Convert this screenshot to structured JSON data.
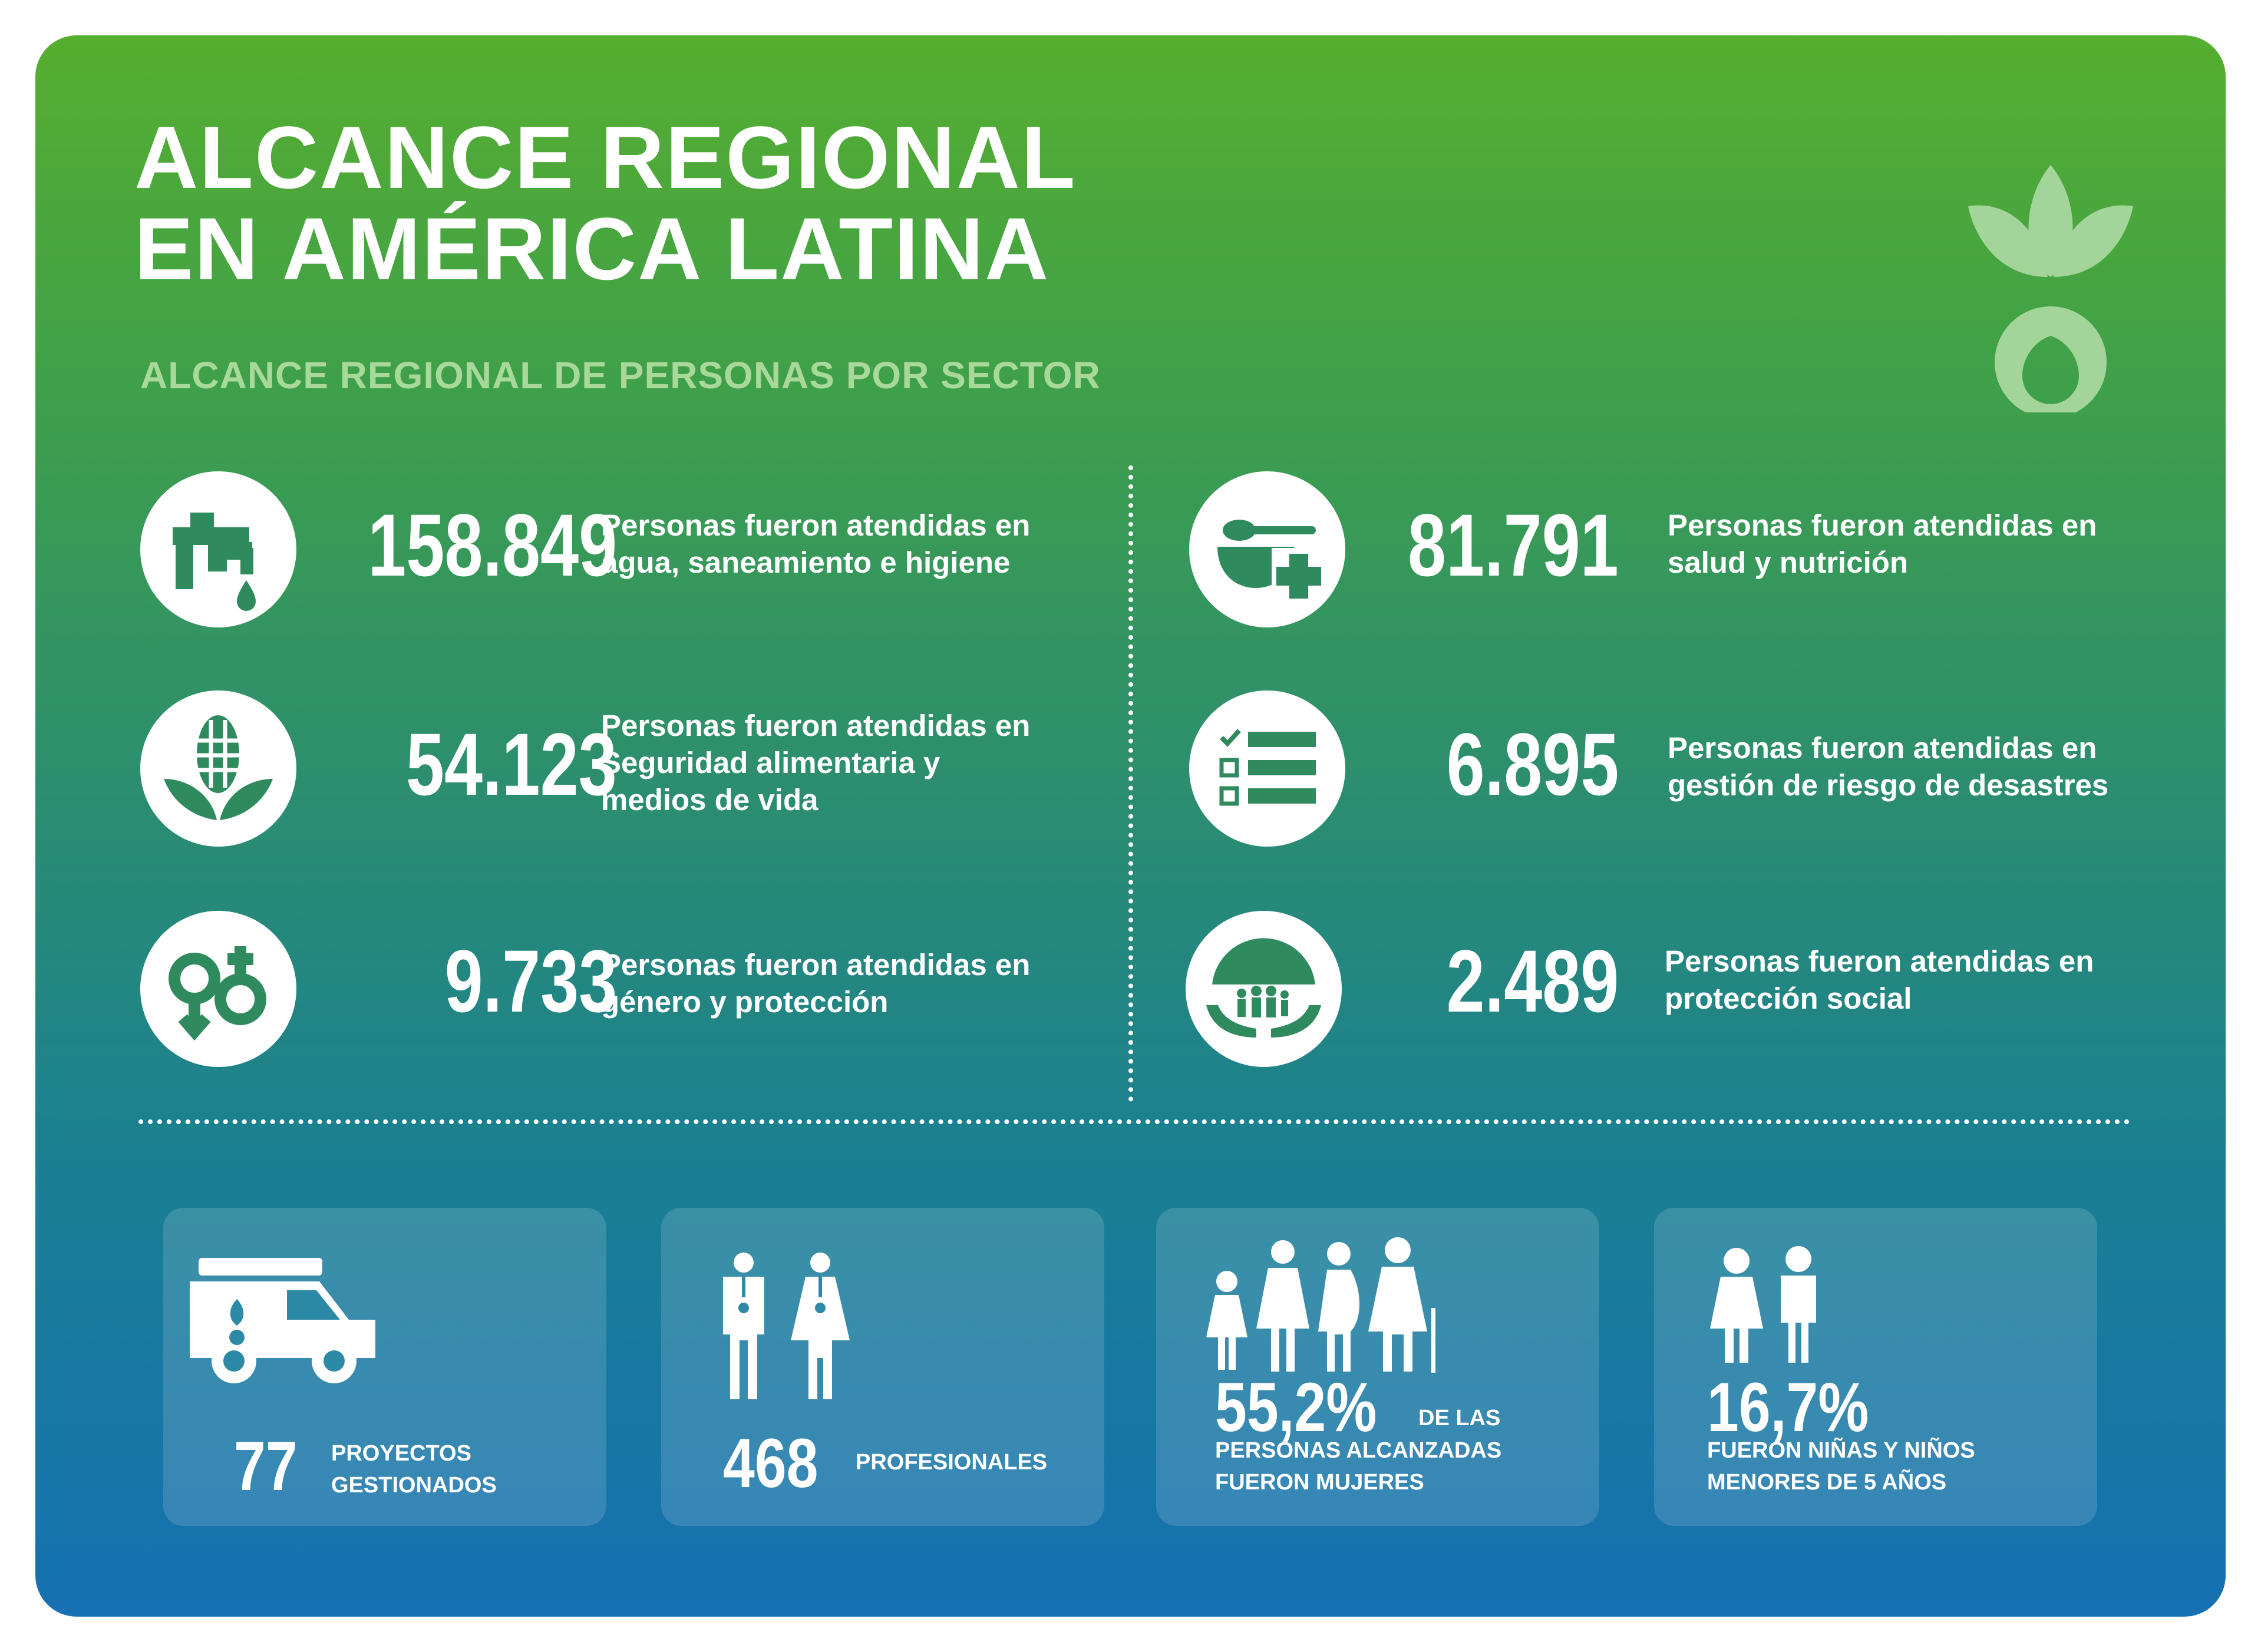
{
  "header": {
    "title_line1": "ALCANCE REGIONAL",
    "title_line2": "EN AMÉRICA LATINA",
    "subtitle": "ALCANCE REGIONAL DE PERSONAS POR SECTOR"
  },
  "colors": {
    "gradient_top": "#56ae2f",
    "gradient_bottom": "#1670b2",
    "icon_green": "#2f8a5e",
    "subtitle_green": "#a9d89b",
    "logo_green": "#a3d59a"
  },
  "sectors": [
    {
      "icon": "water-tap-icon",
      "value": "158.849",
      "line1": "Personas fueron atendidas en",
      "line2": "agua, saneamiento e higiene"
    },
    {
      "icon": "food-health-icon",
      "value": "81.791",
      "line1": "Personas fueron atendidas en",
      "line2": "salud y nutrición"
    },
    {
      "icon": "corn-plant-icon",
      "value": "54.123",
      "line1": "Personas fueron atendidas  en",
      "line2": "Seguridad alimentaria y",
      "line3": "medios de vida"
    },
    {
      "icon": "checklist-icon",
      "value": "6.895",
      "line1": "Personas fueron atendidas en",
      "line2": "gestión de riesgo de desastres"
    },
    {
      "icon": "gender-symbols-icon",
      "value": "9.733",
      "line1": "Personas fueron atendidas  en",
      "line2": "género y protección"
    },
    {
      "icon": "family-umbrella-icon",
      "value": "2.489",
      "line1": "Personas fueron atendidas en",
      "line2": "protección social"
    }
  ],
  "stats": [
    {
      "icon": "vehicle-icon",
      "value": "77",
      "line1": "PROYECTOS",
      "line2": "GESTIONADOS"
    },
    {
      "icon": "professionals-icon",
      "value": "468",
      "line1": "PROFESIONALES"
    },
    {
      "icon": "women-icon",
      "value": "55,2%",
      "suffix": "DE LAS",
      "line1": "PERSONAS ALCANZADAS",
      "line2": "FUERON MUJERES"
    },
    {
      "icon": "children-icon",
      "value": "16,7%",
      "line1": "FUERON NIÑAS Y NIÑOS",
      "line2": "MENORES DE 5 AÑOS"
    }
  ]
}
